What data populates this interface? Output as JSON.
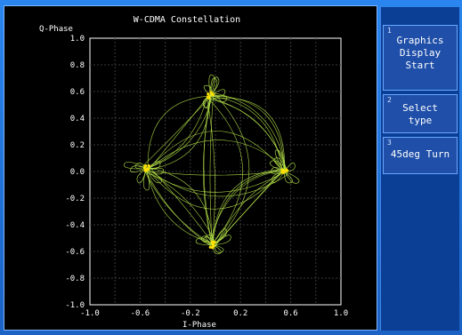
{
  "title": "W-CDMA Constellation",
  "chart": {
    "ylabel": "Q-Phase",
    "xlabel": "I-Phase",
    "yticks": [
      "1.0",
      "0.8",
      "0.6",
      "0.4",
      "0.2",
      "0.0",
      "-0.2",
      "-0.4",
      "-0.6",
      "-0.8",
      "-1.0"
    ],
    "xticks": [
      "-1.0",
      "-0.6",
      "-0.2",
      "0.2",
      "0.6",
      "1.0"
    ],
    "colors": {
      "background": "#000000",
      "grid": "#3a3a3a",
      "trace": "#b9e84a",
      "point": "#ffe000",
      "text": "#ffffff"
    }
  },
  "softkeys": [
    {
      "index": "1",
      "lines": [
        "Graphics",
        "Display",
        "Start"
      ]
    },
    {
      "index": "2",
      "lines": [
        "Select",
        "type"
      ]
    },
    {
      "index": "3",
      "lines": [
        "45deg Turn"
      ]
    }
  ],
  "chart_data": {
    "type": "scatter",
    "title": "W-CDMA Constellation",
    "xlabel": "I-Phase",
    "ylabel": "Q-Phase",
    "xlim": [
      -1.0,
      1.0
    ],
    "ylim": [
      -1.0,
      1.0
    ],
    "grid": true,
    "points": [
      {
        "x": -0.55,
        "y": 0.02
      },
      {
        "x": -0.04,
        "y": 0.57
      },
      {
        "x": 0.55,
        "y": 0.0
      },
      {
        "x": -0.02,
        "y": -0.55
      }
    ]
  }
}
